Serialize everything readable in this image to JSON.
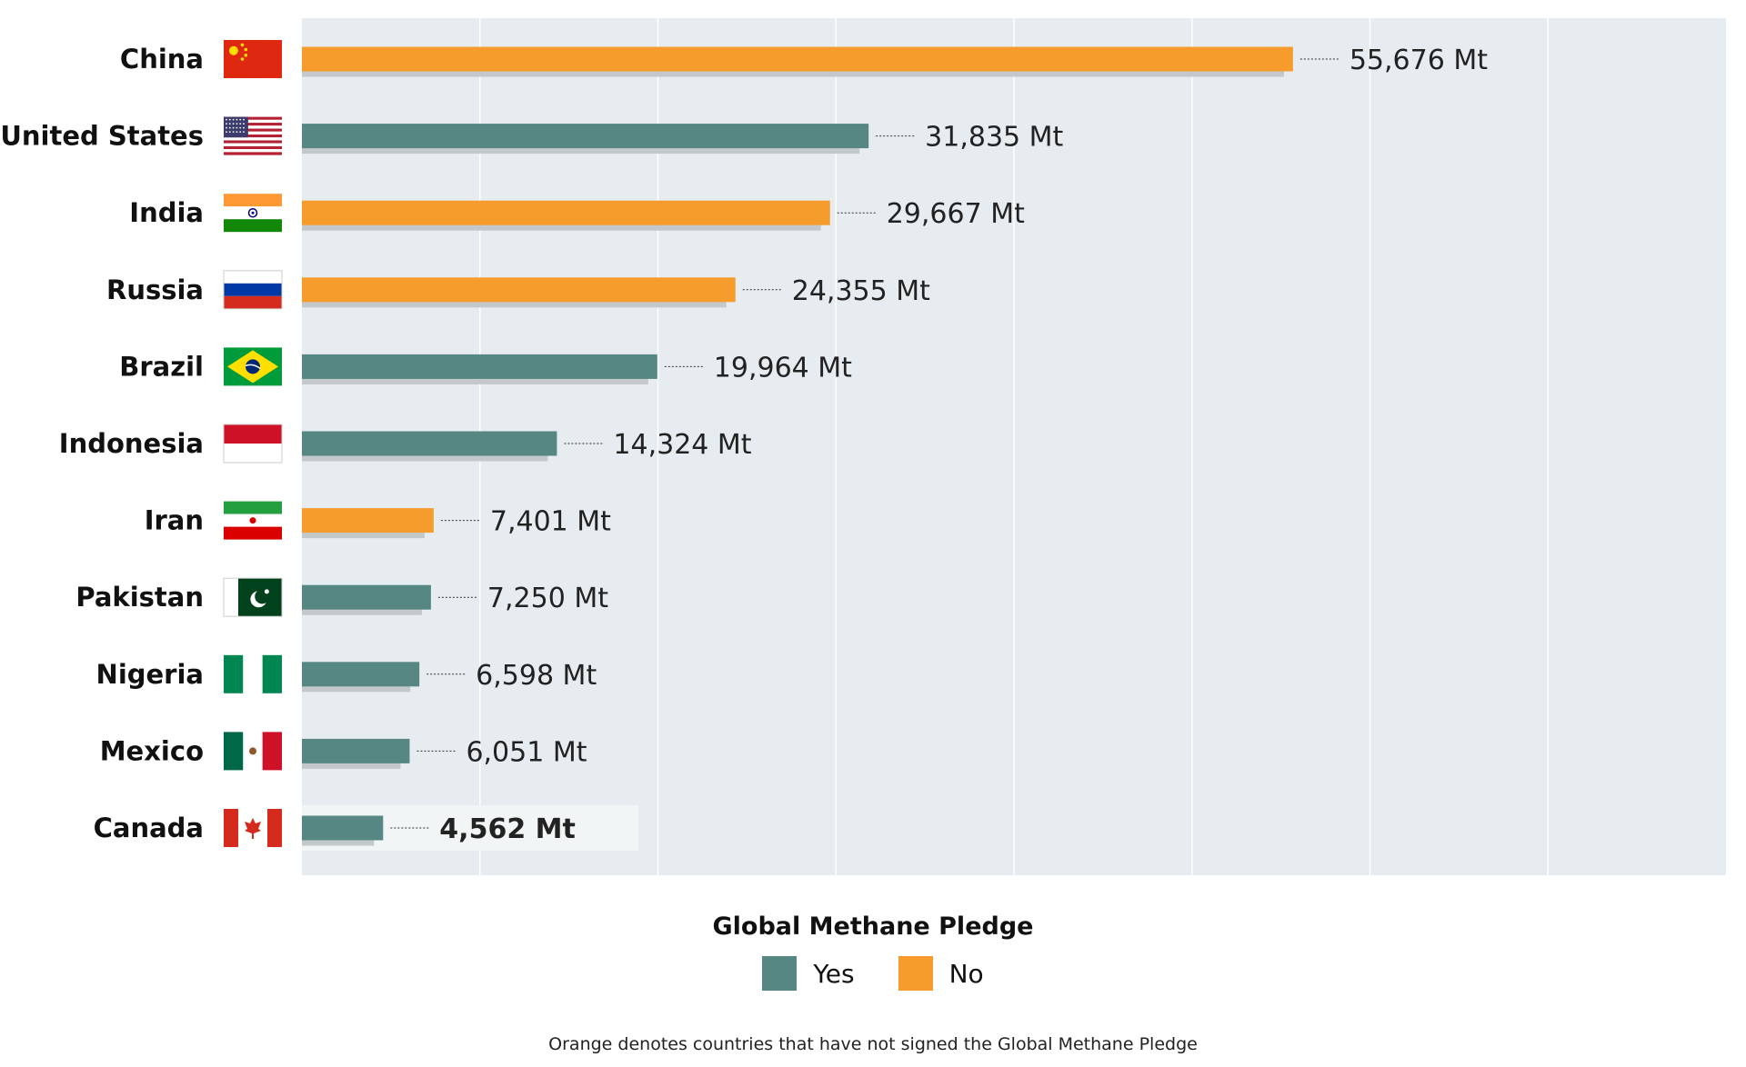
{
  "chart_data": {
    "type": "bar",
    "orientation": "horizontal",
    "unit": "Mt",
    "xlim": [
      0,
      80000
    ],
    "grid": true,
    "categories": [
      "China",
      "United States",
      "India",
      "Russia",
      "Brazil",
      "Indonesia",
      "Iran",
      "Pakistan",
      "Nigeria",
      "Mexico",
      "Canada"
    ],
    "values": [
      55676,
      31835,
      29667,
      24355,
      19964,
      14324,
      7401,
      7250,
      6598,
      6051,
      4562
    ],
    "value_labels": [
      "55,676 Mt",
      "31,835 Mt",
      "29,667 Mt",
      "24,355 Mt",
      "19,964 Mt",
      "14,324 Mt",
      "7,401 Mt",
      "7,250 Mt",
      "6,598 Mt",
      "6,051 Mt",
      "4,562 Mt"
    ],
    "pledge": [
      "No",
      "Yes",
      "No",
      "No",
      "Yes",
      "Yes",
      "No",
      "Yes",
      "Yes",
      "Yes",
      "Yes"
    ],
    "flags": [
      "china-flag",
      "usa-flag",
      "india-flag",
      "russia-flag",
      "brazil-flag",
      "indonesia-flag",
      "iran-flag",
      "pakistan-flag",
      "nigeria-flag",
      "mexico-flag",
      "canada-flag"
    ],
    "highlight": "Canada",
    "legend": {
      "title": "Global Methane Pledge",
      "placement": "bottom-center",
      "items": [
        {
          "label": "Yes",
          "color": "#578783"
        },
        {
          "label": "No",
          "color": "#f59c2c"
        }
      ]
    },
    "caption": "Orange denotes countries that have not signed the Global Methane Pledge"
  },
  "colors": {
    "yes": "#578783",
    "no": "#f59c2c",
    "panel": "#e6ecef",
    "grid": "#ffffff",
    "shadow": "#c3c8ca",
    "highlight_bg": "#f2f5f6"
  }
}
